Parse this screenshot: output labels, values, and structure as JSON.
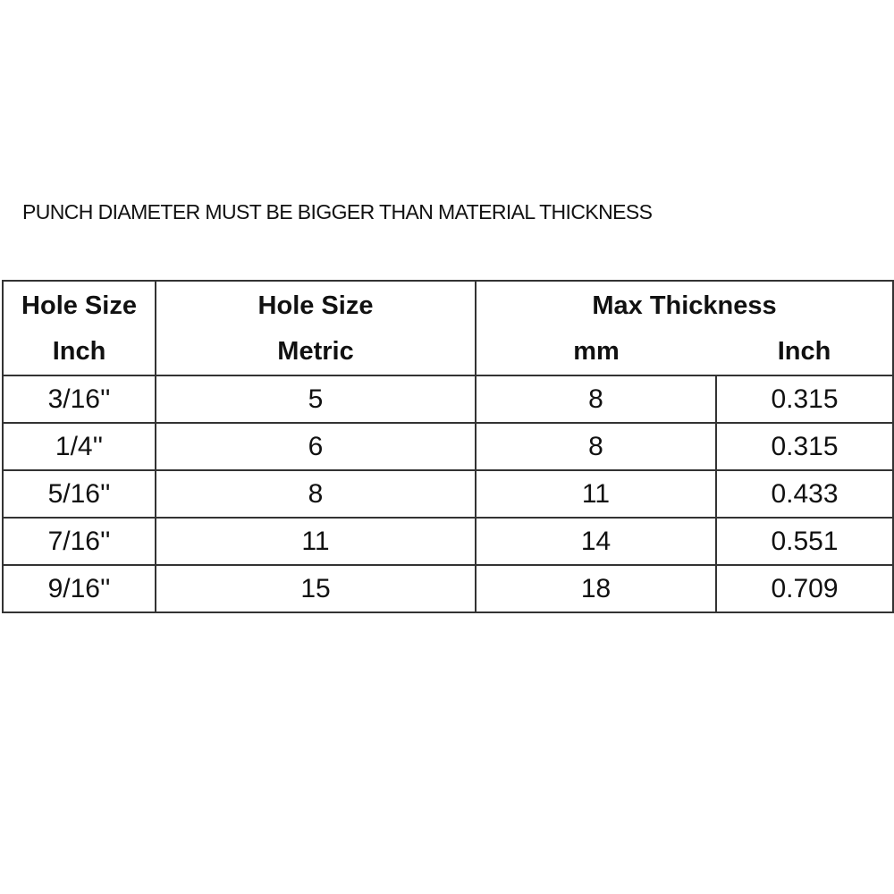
{
  "title": "PUNCH DIAMETER MUST BE BIGGER THAN MATERIAL THICKNESS",
  "table": {
    "headers": {
      "col1": [
        "Hole Size",
        "Inch"
      ],
      "col2": [
        "Hole Size",
        "Metric"
      ],
      "group": "Max Thickness",
      "col3": "mm",
      "col4": "Inch"
    },
    "rows": [
      [
        "3/16''",
        "5",
        "8",
        "0.315"
      ],
      [
        "1/4''",
        "6",
        "8",
        "0.315"
      ],
      [
        "5/16''",
        "8",
        "11",
        "0.433"
      ],
      [
        "7/16''",
        "11",
        "14",
        "0.551"
      ],
      [
        "9/16''",
        "15",
        "18",
        "0.709"
      ]
    ]
  }
}
